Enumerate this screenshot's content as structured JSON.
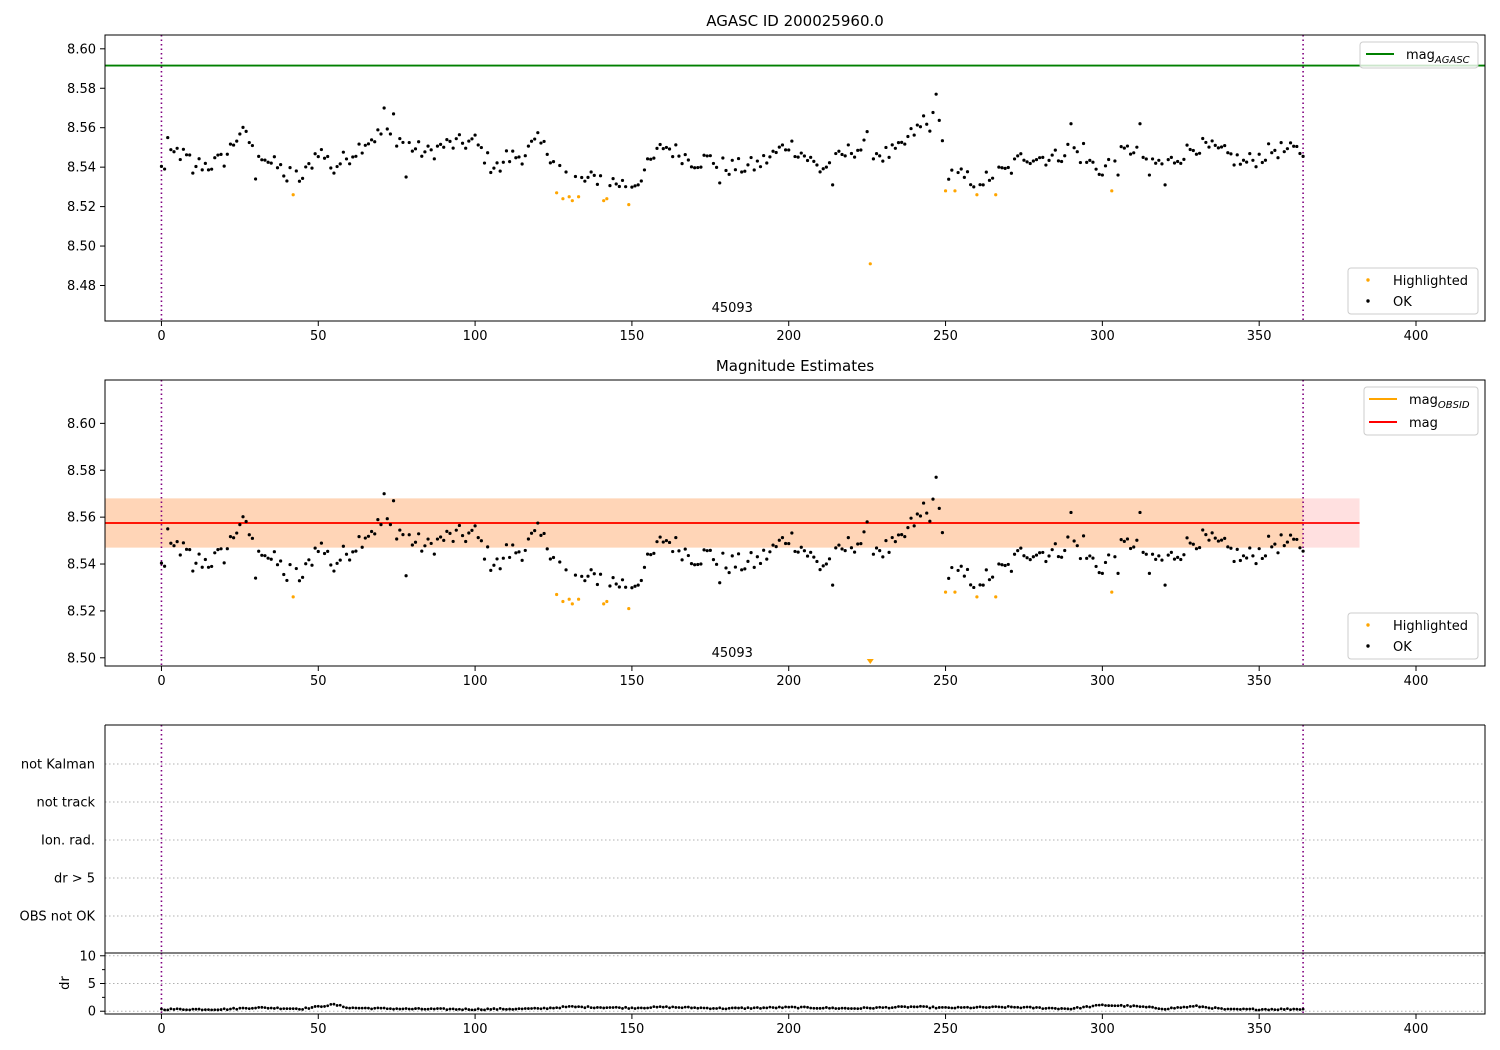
{
  "chart_data": [
    {
      "type": "scatter",
      "title": "AGASC ID 200025960.0",
      "annotation": "45093",
      "xlim": [
        -18,
        422
      ],
      "ylim": [
        8.462,
        8.607
      ],
      "xticks": [
        0,
        50,
        100,
        150,
        200,
        250,
        300,
        350,
        400
      ],
      "yticks": [
        8.48,
        8.5,
        8.52,
        8.54,
        8.56,
        8.58,
        8.6
      ],
      "ytick_labels": [
        "8.48",
        "8.50",
        "8.52",
        "8.54",
        "8.56",
        "8.58",
        "8.60"
      ],
      "vlines": [
        0,
        364
      ],
      "hline": {
        "name": "mag",
        "subscript": "AGASC",
        "y": 8.5915,
        "color": "#008000"
      },
      "legend_upper": [
        {
          "name": "mag",
          "subscript": "AGASC",
          "kind": "line",
          "color": "#008000"
        }
      ],
      "legend_lower": [
        {
          "name": "Highlighted",
          "color": "#ffa500"
        },
        {
          "name": "OK",
          "color": "#000000"
        }
      ],
      "series": [
        {
          "name": "OK",
          "color": "#000000",
          "anchors": [
            [
              0,
              8.539
            ],
            [
              5,
              8.548
            ],
            [
              10,
              8.542
            ],
            [
              15,
              8.541
            ],
            [
              20,
              8.544
            ],
            [
              25,
              8.558
            ],
            [
              30,
              8.55
            ],
            [
              35,
              8.542
            ],
            [
              40,
              8.537
            ],
            [
              45,
              8.534
            ],
            [
              50,
              8.549
            ],
            [
              55,
              8.54
            ],
            [
              60,
              8.546
            ],
            [
              65,
              8.553
            ],
            [
              70,
              8.557
            ],
            [
              75,
              8.555
            ],
            [
              80,
              8.55
            ],
            [
              85,
              8.547
            ],
            [
              90,
              8.551
            ],
            [
              95,
              8.552
            ],
            [
              100,
              8.553
            ],
            [
              105,
              8.541
            ],
            [
              110,
              8.545
            ],
            [
              115,
              8.546
            ],
            [
              120,
              8.553
            ],
            [
              125,
              8.545
            ],
            [
              130,
              8.534
            ],
            [
              135,
              8.533
            ],
            [
              140,
              8.535
            ],
            [
              145,
              8.532
            ],
            [
              150,
              8.531
            ],
            [
              155,
              8.54
            ],
            [
              160,
              8.551
            ],
            [
              165,
              8.547
            ],
            [
              170,
              8.543
            ],
            [
              175,
              8.544
            ],
            [
              180,
              8.54
            ],
            [
              185,
              8.54
            ],
            [
              190,
              8.541
            ],
            [
              195,
              8.546
            ],
            [
              200,
              8.552
            ],
            [
              205,
              8.546
            ],
            [
              210,
              8.539
            ],
            [
              215,
              8.543
            ],
            [
              220,
              8.549
            ],
            [
              225,
              8.55
            ],
            [
              230,
              8.546
            ],
            [
              235,
              8.548
            ],
            [
              240,
              8.558
            ],
            [
              245,
              8.562
            ],
            [
              248,
              8.568
            ],
            [
              250,
              8.536
            ],
            [
              255,
              8.535
            ],
            [
              260,
              8.533
            ],
            [
              265,
              8.536
            ],
            [
              270,
              8.538
            ],
            [
              275,
              8.546
            ],
            [
              280,
              8.545
            ],
            [
              285,
              8.545
            ],
            [
              290,
              8.55
            ],
            [
              295,
              8.543
            ],
            [
              300,
              8.539
            ],
            [
              305,
              8.545
            ],
            [
              310,
              8.55
            ],
            [
              315,
              8.543
            ],
            [
              320,
              8.541
            ],
            [
              325,
              8.546
            ],
            [
              330,
              8.551
            ],
            [
              335,
              8.549
            ],
            [
              340,
              8.546
            ],
            [
              345,
              8.542
            ],
            [
              350,
              8.545
            ],
            [
              355,
              8.549
            ],
            [
              360,
              8.548
            ],
            [
              364,
              8.548
            ]
          ],
          "spikes": [
            [
              71,
              8.57
            ],
            [
              74,
              8.567
            ],
            [
              78,
              8.535
            ],
            [
              247,
              8.577
            ],
            [
              243,
              8.566
            ],
            [
              40,
              8.533
            ],
            [
              30,
              8.534
            ],
            [
              55,
              8.537
            ],
            [
              108,
              8.538
            ],
            [
              300,
              8.536
            ],
            [
              305,
              8.536
            ],
            [
              315,
              8.536
            ],
            [
              320,
              8.531
            ],
            [
              262,
              8.531
            ],
            [
              178,
              8.532
            ],
            [
              214,
              8.531
            ],
            [
              10,
              8.537
            ],
            [
              290,
              8.562
            ],
            [
              312,
              8.562
            ],
            [
              225,
              8.558
            ],
            [
              294,
              8.552
            ],
            [
              152,
              8.531
            ],
            [
              2,
              8.555
            ]
          ]
        },
        {
          "name": "Highlighted",
          "color": "#ffa500",
          "points": [
            [
              42,
              8.526
            ],
            [
              126,
              8.527
            ],
            [
              128,
              8.524
            ],
            [
              130,
              8.525
            ],
            [
              131,
              8.523
            ],
            [
              133,
              8.525
            ],
            [
              141,
              8.523
            ],
            [
              142,
              8.524
            ],
            [
              149,
              8.521
            ],
            [
              226,
              8.491
            ],
            [
              250,
              8.528
            ],
            [
              253,
              8.528
            ],
            [
              260,
              8.526
            ],
            [
              266,
              8.526
            ],
            [
              303,
              8.528
            ]
          ]
        }
      ]
    },
    {
      "type": "scatter",
      "title": "Magnitude Estimates",
      "annotation": "45093",
      "xlim": [
        -18,
        422
      ],
      "ylim": [
        8.4965,
        8.6185
      ],
      "xticks": [
        0,
        50,
        100,
        150,
        200,
        250,
        300,
        350,
        400
      ],
      "yticks": [
        8.5,
        8.52,
        8.54,
        8.56,
        8.58,
        8.6
      ],
      "ytick_labels": [
        "8.50",
        "8.52",
        "8.54",
        "8.56",
        "8.58",
        "8.60"
      ],
      "vlines": [
        0,
        364
      ],
      "hline": {
        "name": "mag",
        "y": 8.5575,
        "color": "#ff0000",
        "band": [
          8.547,
          8.568
        ],
        "xrange": [
          -18,
          382
        ]
      },
      "obsid_line": {
        "name": "mag",
        "subscript": "OBSID",
        "y": 8.5575,
        "color": "#ffa500",
        "xrange": [
          -18,
          364
        ]
      },
      "legend_upper": [
        {
          "name": "mag",
          "subscript": "OBSID",
          "kind": "line",
          "color": "#ffa500"
        },
        {
          "name": "mag",
          "subscript": "",
          "kind": "line",
          "color": "#ff0000"
        }
      ],
      "legend_lower": [
        {
          "name": "Highlighted",
          "color": "#ffa500"
        },
        {
          "name": "OK",
          "color": "#000000"
        }
      ],
      "same_points_as": 0,
      "clipped_marker": {
        "x": 226,
        "color": "#ffa500"
      }
    },
    {
      "type": "scatter",
      "categories": [
        "OBS not OK",
        "dr > 5",
        "Ion. rad.",
        "not track",
        "not Kalman"
      ],
      "xlim": [
        -18,
        422
      ],
      "vlines": [
        0,
        364
      ],
      "flag_points": []
    },
    {
      "type": "scatter",
      "ylabel": "dr",
      "xlim": [
        -18,
        422
      ],
      "ylim": [
        -0.5,
        10.5
      ],
      "yticks": [
        0,
        5,
        10
      ],
      "ytick_labels": [
        "0",
        "5",
        "10"
      ],
      "xticks": [
        0,
        50,
        100,
        150,
        200,
        250,
        300,
        350,
        400
      ],
      "vlines": [
        0,
        364
      ],
      "series": [
        {
          "name": "dr",
          "color": "#000000",
          "anchors": [
            [
              0,
              0.35
            ],
            [
              20,
              0.35
            ],
            [
              30,
              0.65
            ],
            [
              45,
              0.45
            ],
            [
              55,
              1.2
            ],
            [
              60,
              0.6
            ],
            [
              80,
              0.4
            ],
            [
              100,
              0.35
            ],
            [
              120,
              0.45
            ],
            [
              130,
              0.8
            ],
            [
              150,
              0.6
            ],
            [
              160,
              0.75
            ],
            [
              180,
              0.5
            ],
            [
              200,
              0.7
            ],
            [
              220,
              0.5
            ],
            [
              240,
              0.8
            ],
            [
              250,
              0.6
            ],
            [
              270,
              0.75
            ],
            [
              290,
              0.45
            ],
            [
              300,
              1.1
            ],
            [
              310,
              0.9
            ],
            [
              320,
              0.45
            ],
            [
              330,
              0.9
            ],
            [
              340,
              0.3
            ],
            [
              364,
              0.4
            ]
          ]
        }
      ]
    }
  ]
}
